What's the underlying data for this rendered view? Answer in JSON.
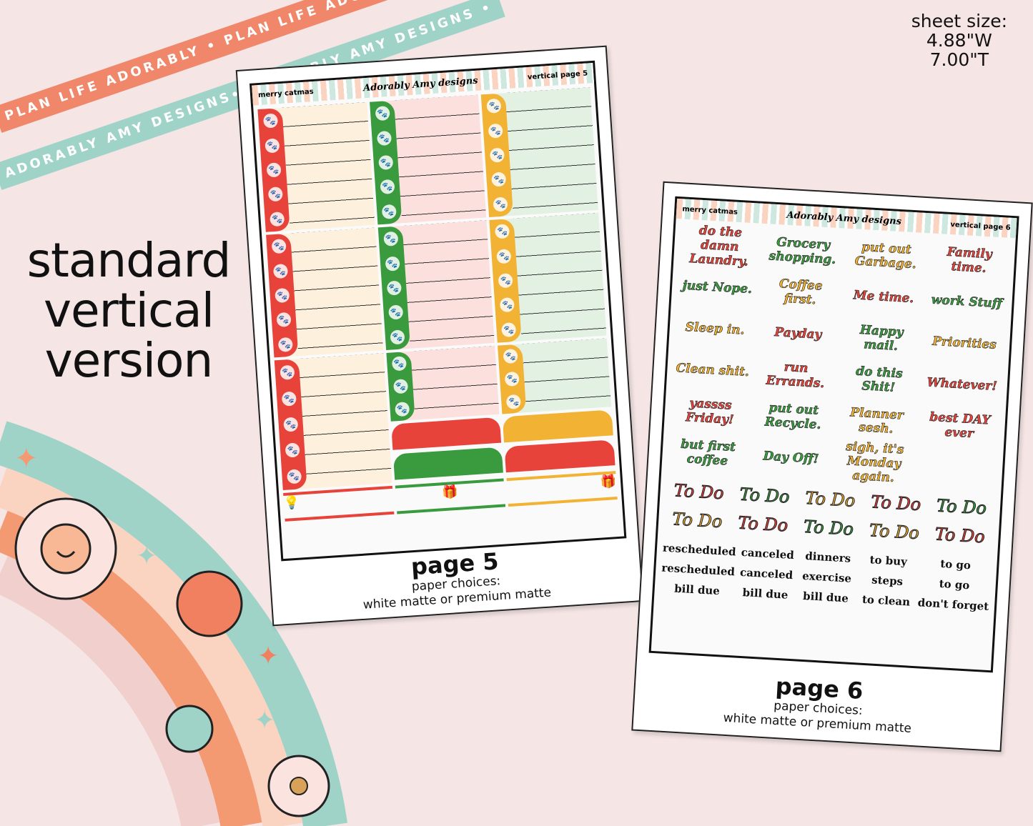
{
  "ribbons": {
    "top": "PLAN LIFE ADORABLY • PLAN LIFE ADORABLY •",
    "bottom": "ADORABLY AMY DESIGNS• ADORABLY AMY DESIGNS •"
  },
  "sheet_size": {
    "label": "sheet size:",
    "width": "4.88\"W",
    "height": "7.00\"T"
  },
  "headline": [
    "standard",
    "vertical",
    "version"
  ],
  "colors": {
    "red": "#e8433a",
    "green": "#3a9a3e",
    "yellow": "#f2b233",
    "cream": "#fdf0dc",
    "pink": "#fbe0de",
    "mint": "#e3f1e3",
    "background": "#f5e5e5"
  },
  "page5": {
    "theme": "merry catmas",
    "logo": "Adorably Amy designs",
    "page_label": "vertical page 5",
    "title": "page 5",
    "paper_label": "paper choices:",
    "paper_options": "white matte or premium matte"
  },
  "page6": {
    "theme": "merry catmas",
    "logo": "Adorably Amy designs",
    "page_label": "vertical page 6",
    "title": "page 6",
    "paper_label": "paper choices:",
    "paper_options": "white matte or premium matte",
    "phrases": [
      {
        "text": "do the damn Laundry.",
        "color": "#e8433a"
      },
      {
        "text": "Grocery shopping.",
        "color": "#3a9a3e"
      },
      {
        "text": "put out Garbage.",
        "color": "#f2b233"
      },
      {
        "text": "Family time.",
        "color": "#e8433a"
      },
      {
        "text": "just Nope.",
        "color": "#3a9a3e"
      },
      {
        "text": "Coffee first.",
        "color": "#f2b233"
      },
      {
        "text": "Me time.",
        "color": "#e8433a"
      },
      {
        "text": "work Stuff",
        "color": "#3a9a3e"
      },
      {
        "text": "Sleep in.",
        "color": "#f2b233"
      },
      {
        "text": "Payday",
        "color": "#e8433a"
      },
      {
        "text": "Happy mail.",
        "color": "#3a9a3e"
      },
      {
        "text": "Priorities",
        "color": "#f2b233"
      },
      {
        "text": "Clean shit.",
        "color": "#f2b233"
      },
      {
        "text": "run Errands.",
        "color": "#e8433a"
      },
      {
        "text": "do this Shit!",
        "color": "#3a9a3e"
      },
      {
        "text": "Whatever!",
        "color": "#e8433a"
      },
      {
        "text": "yassss Friday!",
        "color": "#e8433a"
      },
      {
        "text": "put out Recycle.",
        "color": "#3a9a3e"
      },
      {
        "text": "Planner sesh.",
        "color": "#f2b233"
      },
      {
        "text": "best DAY ever",
        "color": "#e8433a"
      },
      {
        "text": "but first coffee",
        "color": "#3a9a3e"
      },
      {
        "text": "Day Off!",
        "color": "#3a9a3e"
      },
      {
        "text": "sigh, it's Monday again.",
        "color": "#f2b233"
      }
    ],
    "todo_text": "To Do",
    "todo_colors": [
      "#e8433a",
      "#3a9a3e",
      "#f2b233",
      "#e8433a",
      "#3a9a3e",
      "#f2b233",
      "#e8433a",
      "#3a9a3e",
      "#f2b233",
      "#e8433a"
    ],
    "labels": [
      "rescheduled",
      "canceled",
      "dinners",
      "to buy",
      "to go",
      "rescheduled",
      "canceled",
      "exercise",
      "steps",
      "to go",
      "bill due",
      "bill due",
      "bill due",
      "to clean",
      "don't forget"
    ]
  }
}
